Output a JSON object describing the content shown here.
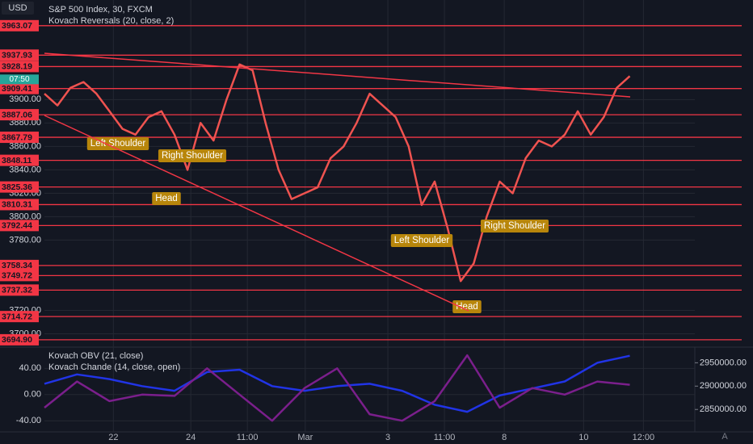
{
  "chart_data": [
    {
      "type": "line",
      "currency": "USD",
      "title": "S&P 500 Index, 30, FXCM",
      "subtitle": "Kovach Reversals (20, close, 2)",
      "x": [
        0,
        2,
        4,
        6,
        8,
        10,
        12,
        14,
        16,
        18,
        20,
        22,
        24,
        26,
        28,
        30,
        32,
        34,
        36,
        38,
        40,
        42,
        44,
        46,
        48,
        50,
        52,
        54,
        56,
        58,
        60,
        62,
        64,
        66,
        68,
        70,
        72,
        74,
        76,
        78,
        80,
        82,
        84,
        86,
        88,
        90
      ],
      "values": [
        3905,
        3895,
        3910,
        3915,
        3905,
        3890,
        3875,
        3870,
        3885,
        3890,
        3870,
        3840,
        3880,
        3865,
        3900,
        3930,
        3925,
        3880,
        3840,
        3815,
        3820,
        3825,
        3850,
        3860,
        3880,
        3905,
        3895,
        3885,
        3860,
        3810,
        3830,
        3790,
        3745,
        3760,
        3800,
        3830,
        3820,
        3850,
        3865,
        3860,
        3870,
        3890,
        3870,
        3885,
        3910,
        3920
      ],
      "color": "#ef5350",
      "xlim": [
        0,
        100
      ],
      "xticks": [
        {
          "value": 10.6,
          "label": "22"
        },
        {
          "value": 22.5,
          "label": "24"
        },
        {
          "value": 31.2,
          "label": "11:00"
        },
        {
          "value": 40.1,
          "label": "Mar"
        },
        {
          "value": 52.8,
          "label": "3"
        },
        {
          "value": 61.5,
          "label": "11:00"
        },
        {
          "value": 70.7,
          "label": "8"
        },
        {
          "value": 82.9,
          "label": "10"
        },
        {
          "value": 92.1,
          "label": "12:00"
        }
      ],
      "ylim": [
        3690,
        3985
      ],
      "yticks": [
        {
          "value": 3700,
          "label": "3700.00"
        },
        {
          "value": 3720,
          "label": "3720.00"
        },
        {
          "value": 3780,
          "label": "3780.00"
        },
        {
          "value": 3800,
          "label": "3800.00"
        },
        {
          "value": 3820,
          "label": "3820.00"
        },
        {
          "value": 3840,
          "label": "3840.00"
        },
        {
          "value": 3860,
          "label": "3860.00"
        },
        {
          "value": 3880,
          "label": "3880.00"
        },
        {
          "value": 3900,
          "label": "3900.00"
        }
      ],
      "levels": [
        3963.07,
        3937.93,
        3928.19,
        3909.41,
        3887.06,
        3867.79,
        3848.11,
        3825.36,
        3810.31,
        3792.44,
        3758.34,
        3749.72,
        3737.32,
        3714.72,
        3694.9
      ],
      "level_labels": [
        "3963.07",
        "3937.93",
        "3928.19",
        "3909.41",
        "3887.06",
        "3867.79",
        "3848.11",
        "3825.36",
        "3810.31",
        "3792.44",
        "3758.34",
        "3749.72",
        "3737.32",
        "3714.72",
        "3694.90"
      ],
      "current_label": "07:50",
      "annotations": [
        "Left Shoulder",
        "Right Shoulder",
        "Head",
        "Left Shoulder",
        "Right Shoulder",
        "Head"
      ],
      "grid": true
    },
    {
      "type": "line",
      "x": [
        0,
        5,
        10,
        15,
        20,
        25,
        30,
        35,
        40,
        45,
        50,
        55,
        60,
        65,
        70,
        75,
        80,
        85,
        90
      ],
      "series": [
        {
          "name": "Kovach OBV (21, close)",
          "color": "#2134e6",
          "axis": "y2",
          "values": [
            2905000,
            2925000,
            2915000,
            2900000,
            2890000,
            2930000,
            2935000,
            2900000,
            2890000,
            2900000,
            2905000,
            2890000,
            2860000,
            2845000,
            2880000,
            2895000,
            2910000,
            2950000,
            2965000
          ]
        },
        {
          "name": "Kovach Chande (14, close, open)",
          "color": "#7b1f8c",
          "values": [
            -20,
            20,
            -10,
            0,
            -2,
            40,
            0,
            -40,
            10,
            40,
            -30,
            -40,
            -10,
            60,
            -20,
            10,
            0,
            20,
            15
          ]
        }
      ],
      "xlim": [
        0,
        100
      ],
      "ylim": [
        -57,
        70
      ],
      "yticks": [
        {
          "value": 40,
          "label": "40.00"
        },
        {
          "value": 0,
          "label": "0.00"
        },
        {
          "value": -40,
          "label": "-40.00"
        }
      ],
      "y2lim": [
        2802000,
        2980000
      ],
      "y2ticks": [
        {
          "value": 2950000,
          "label": "2950000.00"
        },
        {
          "value": 2900000,
          "label": "2900000.00"
        },
        {
          "value": 2850000,
          "label": "2850000.00"
        }
      ],
      "grid": true
    }
  ]
}
